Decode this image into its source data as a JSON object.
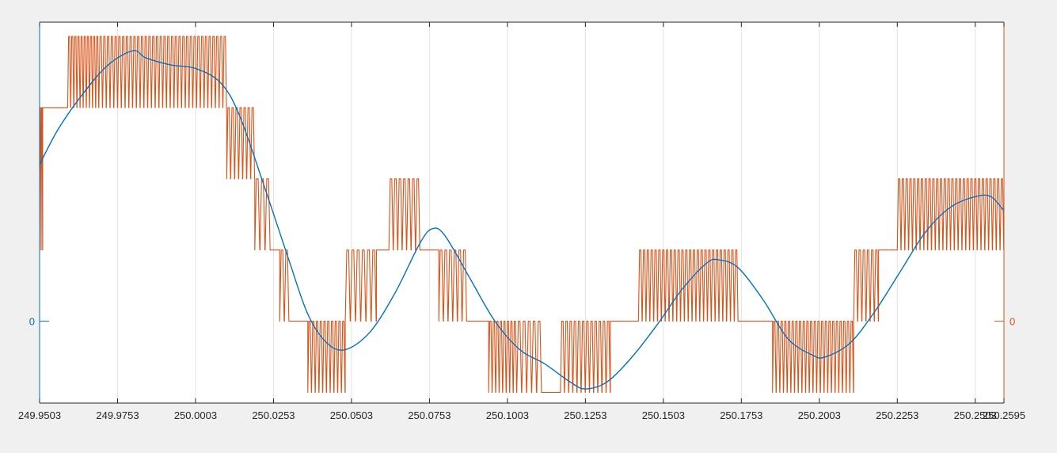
{
  "chart_data": {
    "type": "line",
    "title": "",
    "xlabel": "",
    "xlim": [
      249.9503,
      250.2595
    ],
    "x_ticks": [
      {
        "value": 249.9503,
        "label": "249.9503"
      },
      {
        "value": 249.9753,
        "label": "249.9753"
      },
      {
        "value": 250.0003,
        "label": "250.0003"
      },
      {
        "value": 250.0253,
        "label": "250.0253"
      },
      {
        "value": 250.0503,
        "label": "250.0503"
      },
      {
        "value": 250.0753,
        "label": "250.0753"
      },
      {
        "value": 250.1003,
        "label": "250.1003"
      },
      {
        "value": 250.1253,
        "label": "250.1253"
      },
      {
        "value": 250.1503,
        "label": "250.1503"
      },
      {
        "value": 250.1753,
        "label": "250.1753"
      },
      {
        "value": 250.2003,
        "label": "250.2003"
      },
      {
        "value": 250.2253,
        "label": "250.2253"
      },
      {
        "value": 250.2503,
        "label": "250.2503"
      },
      {
        "value": 250.2595,
        "label": "250.2595"
      }
    ],
    "left_axis": {
      "ylim": [
        -1.15,
        4.2
      ],
      "ticks": [
        {
          "value": 0,
          "label": "0"
        }
      ],
      "color": "#0072BD"
    },
    "right_axis": {
      "ylim": [
        -1.15,
        4.2
      ],
      "ticks": [
        {
          "value": 0,
          "label": "0"
        }
      ],
      "color": "#D95319"
    },
    "grid": {
      "x": true,
      "y": false
    },
    "legend": "none",
    "series": [
      {
        "axis": "left",
        "color": "#0072BD",
        "x": [
          249.9503,
          249.9563,
          249.9643,
          249.9723,
          249.9803,
          249.9843,
          249.9923,
          250.0003,
          250.0083,
          250.0143,
          250.0223,
          250.0303,
          250.0363,
          250.0423,
          250.0483,
          250.0563,
          250.0643,
          250.0723,
          250.0763,
          250.0803,
          250.0883,
          250.0963,
          250.1043,
          250.1123,
          250.1203,
          250.1253,
          250.1323,
          250.1403,
          250.1483,
          250.1563,
          250.1643,
          250.1683,
          250.1743,
          250.1823,
          250.1903,
          250.1983,
          250.2023,
          250.2103,
          250.2183,
          250.2263,
          250.2343,
          250.2423,
          250.2503,
          250.2553,
          250.2595
        ],
        "y": [
          2.2,
          2.7,
          3.2,
          3.6,
          3.8,
          3.7,
          3.6,
          3.55,
          3.35,
          2.9,
          1.9,
          0.85,
          0.1,
          -0.3,
          -0.4,
          -0.15,
          0.4,
          1.1,
          1.3,
          1.2,
          0.6,
          0.0,
          -0.4,
          -0.6,
          -0.85,
          -0.95,
          -0.85,
          -0.5,
          -0.05,
          0.45,
          0.82,
          0.86,
          0.75,
          0.3,
          -0.25,
          -0.48,
          -0.5,
          -0.3,
          0.15,
          0.7,
          1.25,
          1.6,
          1.75,
          1.75,
          1.55
        ]
      },
      {
        "axis": "right",
        "color": "#D95319",
        "levels": [
          -1,
          0,
          1,
          2,
          3,
          4
        ],
        "segments": [
          {
            "x0": 249.9503,
            "x1": 249.9513,
            "lo": 1,
            "hi": 3,
            "spikes": 2
          },
          {
            "x0": 249.9513,
            "x1": 249.9593,
            "lo": 3,
            "hi": 3,
            "spikes": 0
          },
          {
            "x0": 249.9593,
            "x1": 249.9693,
            "lo": 3,
            "hi": 4,
            "spikes": 10
          },
          {
            "x0": 249.9693,
            "x1": 250.0103,
            "lo": 3,
            "hi": 4,
            "spikes": 34
          },
          {
            "x0": 250.0103,
            "x1": 250.0193,
            "lo": 2,
            "hi": 3,
            "spikes": 7
          },
          {
            "x0": 250.0193,
            "x1": 250.0243,
            "lo": 1,
            "hi": 2,
            "spikes": 3
          },
          {
            "x0": 250.0243,
            "x1": 250.0273,
            "lo": 1,
            "hi": 1,
            "spikes": 0
          },
          {
            "x0": 250.0273,
            "x1": 250.0303,
            "lo": 0,
            "hi": 1,
            "spikes": 2
          },
          {
            "x0": 250.0303,
            "x1": 250.0363,
            "lo": 0,
            "hi": 0,
            "spikes": 0
          },
          {
            "x0": 250.0363,
            "x1": 250.0483,
            "lo": -1,
            "hi": 0,
            "spikes": 10
          },
          {
            "x0": 250.0483,
            "x1": 250.0583,
            "lo": 0,
            "hi": 1,
            "spikes": 6
          },
          {
            "x0": 250.0583,
            "x1": 250.0623,
            "lo": 1,
            "hi": 1,
            "spikes": 0
          },
          {
            "x0": 250.0623,
            "x1": 250.0723,
            "lo": 1,
            "hi": 2,
            "spikes": 7
          },
          {
            "x0": 250.0723,
            "x1": 250.0783,
            "lo": 1,
            "hi": 1,
            "spikes": 0
          },
          {
            "x0": 250.0783,
            "x1": 250.0873,
            "lo": 0,
            "hi": 1,
            "spikes": 6
          },
          {
            "x0": 250.0873,
            "x1": 250.0943,
            "lo": 0,
            "hi": 0,
            "spikes": 0
          },
          {
            "x0": 250.0943,
            "x1": 250.1033,
            "lo": -1,
            "hi": 0,
            "spikes": 8
          },
          {
            "x0": 250.1033,
            "x1": 250.1113,
            "lo": -1,
            "hi": 0,
            "spikes": 5
          },
          {
            "x0": 250.1113,
            "x1": 250.1173,
            "lo": -1,
            "hi": -1,
            "spikes": 0
          },
          {
            "x0": 250.1173,
            "x1": 250.1333,
            "lo": -1,
            "hi": 0,
            "spikes": 12
          },
          {
            "x0": 250.1333,
            "x1": 250.1423,
            "lo": 0,
            "hi": 0,
            "spikes": 0
          },
          {
            "x0": 250.1423,
            "x1": 250.1743,
            "lo": 0,
            "hi": 1,
            "spikes": 26
          },
          {
            "x0": 250.1743,
            "x1": 250.1853,
            "lo": 0,
            "hi": 0,
            "spikes": 0
          },
          {
            "x0": 250.1853,
            "x1": 250.2113,
            "lo": -1,
            "hi": 0,
            "spikes": 22
          },
          {
            "x0": 250.2113,
            "x1": 250.2193,
            "lo": 0,
            "hi": 1,
            "spikes": 6
          },
          {
            "x0": 250.2193,
            "x1": 250.2253,
            "lo": 1,
            "hi": 1,
            "spikes": 0
          },
          {
            "x0": 250.2253,
            "x1": 250.2595,
            "lo": 1,
            "hi": 2,
            "spikes": 28
          }
        ]
      }
    ]
  }
}
